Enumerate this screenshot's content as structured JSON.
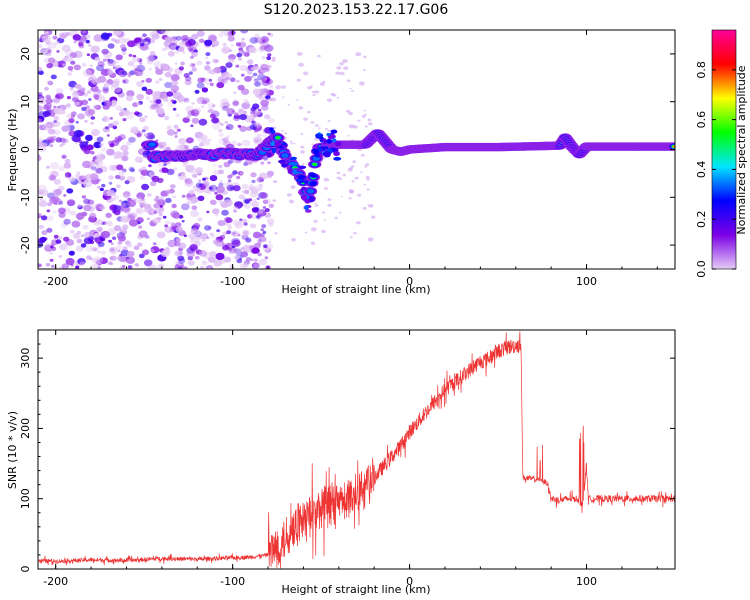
{
  "figure": {
    "title": "S120.2023.153.22.17.G06"
  },
  "chart_data": [
    {
      "type": "heatmap",
      "title": "",
      "xlabel": "Height of straight line (km)",
      "ylabel": "Frequency (Hz)",
      "xlim": [
        -210,
        150
      ],
      "ylim": [
        -25,
        25
      ],
      "xticks": [
        -200,
        -100,
        0,
        100
      ],
      "yticks": [
        -20,
        -10,
        0,
        10,
        20
      ],
      "colorbar": {
        "label": "Normalized spectral amplitude",
        "range": [
          0,
          0.96
        ],
        "ticks": [
          0.0,
          0.2,
          0.4,
          0.6,
          0.8
        ],
        "colormap": [
          "#e6ccf5",
          "#7b00e6",
          "#0000ff",
          "#00e6ff",
          "#00ff00",
          "#ffff00",
          "#ff0000",
          "#ff0099"
        ]
      },
      "features": {
        "noise_region_x": [
          -210,
          -78
        ],
        "carrier_track": [
          [
            -145,
            -1.5
          ],
          [
            -120,
            -1.2
          ],
          [
            -100,
            -1
          ],
          [
            -85,
            -1
          ],
          [
            -75,
            2.5
          ],
          [
            -70,
            -2
          ],
          [
            -62,
            -5
          ],
          [
            -57,
            -11
          ],
          [
            -52,
            0
          ],
          [
            -40,
            1
          ],
          [
            -25,
            1
          ],
          [
            -18,
            3.5
          ],
          [
            -10,
            0
          ],
          [
            -5,
            -0.5
          ],
          [
            0,
            0
          ],
          [
            20,
            0.5
          ],
          [
            50,
            0.5
          ],
          [
            85,
            0.8
          ],
          [
            88,
            2.5
          ],
          [
            92,
            0.5
          ],
          [
            96,
            -1
          ],
          [
            100,
            0.6
          ],
          [
            150,
            0.6
          ]
        ]
      }
    },
    {
      "type": "line",
      "title": "",
      "xlabel": "Height of straight line (km)",
      "ylabel": "SNR (10 * v/v)",
      "xlim": [
        -210,
        150
      ],
      "ylim": [
        0,
        340
      ],
      "xticks": [
        -200,
        -100,
        0,
        100
      ],
      "yticks": [
        0,
        100,
        200,
        300
      ],
      "color": "#ee3333",
      "series": [
        {
          "x": [
            -210,
            -200,
            -180,
            -160,
            -140,
            -120,
            -100,
            -90,
            -80,
            -75,
            -70,
            -65,
            -60,
            -55,
            -50,
            -45,
            -40,
            -35,
            -30,
            -25,
            -20,
            -15,
            -10,
            -5,
            0,
            5,
            10,
            15,
            20,
            25,
            30,
            35,
            40,
            45,
            50,
            55,
            60,
            62,
            63,
            64,
            70,
            75,
            78,
            80,
            85,
            90,
            95,
            98,
            100,
            101,
            105,
            110,
            120,
            130,
            140,
            150
          ],
          "y": [
            12,
            11,
            13,
            12,
            15,
            14,
            16,
            17,
            20,
            30,
            45,
            60,
            70,
            80,
            85,
            90,
            95,
            100,
            110,
            120,
            130,
            145,
            160,
            175,
            195,
            210,
            225,
            240,
            255,
            265,
            275,
            285,
            295,
            300,
            310,
            315,
            318,
            320,
            320,
            130,
            128,
            125,
            122,
            100,
            98,
            100,
            100,
            90,
            150,
            100,
            100,
            100,
            100,
            100,
            100,
            100
          ]
        }
      ]
    }
  ]
}
